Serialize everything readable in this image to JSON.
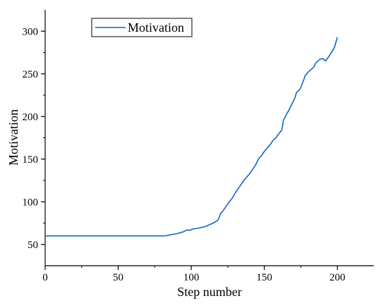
{
  "chart_data": {
    "type": "line",
    "xlabel": "Step number",
    "ylabel": "Motivation",
    "xlim": [
      0,
      225
    ],
    "ylim": [
      25,
      325
    ],
    "xticks": [
      0,
      50,
      100,
      150,
      200
    ],
    "yticks": [
      50,
      100,
      150,
      200,
      250,
      300
    ],
    "grid": false,
    "legend_position": "top-left",
    "line_color": "#1565c0",
    "series": [
      {
        "name": "Motivation",
        "points": [
          [
            0,
            60
          ],
          [
            10,
            60
          ],
          [
            20,
            60
          ],
          [
            30,
            60
          ],
          [
            40,
            60
          ],
          [
            50,
            60
          ],
          [
            60,
            60
          ],
          [
            70,
            60
          ],
          [
            80,
            60
          ],
          [
            82,
            60
          ],
          [
            85,
            61
          ],
          [
            88,
            62
          ],
          [
            90,
            62.5
          ],
          [
            93,
            64
          ],
          [
            95,
            65
          ],
          [
            97,
            67
          ],
          [
            99,
            66.5
          ],
          [
            101,
            68
          ],
          [
            103,
            68.5
          ],
          [
            105,
            69
          ],
          [
            107,
            70
          ],
          [
            109,
            70.5
          ],
          [
            111,
            72
          ],
          [
            113,
            73.5
          ],
          [
            115,
            75
          ],
          [
            117,
            77
          ],
          [
            118,
            78
          ],
          [
            119,
            81
          ],
          [
            120,
            86
          ],
          [
            122,
            90
          ],
          [
            124,
            95
          ],
          [
            126,
            100
          ],
          [
            128,
            104
          ],
          [
            130,
            110
          ],
          [
            132,
            115
          ],
          [
            134,
            120
          ],
          [
            136,
            125
          ],
          [
            138,
            129
          ],
          [
            140,
            133
          ],
          [
            142,
            138
          ],
          [
            144,
            143
          ],
          [
            146,
            150
          ],
          [
            148,
            154
          ],
          [
            150,
            159
          ],
          [
            152,
            163
          ],
          [
            154,
            167
          ],
          [
            156,
            172
          ],
          [
            158,
            175
          ],
          [
            160,
            180
          ],
          [
            162,
            184
          ],
          [
            163,
            195
          ],
          [
            165,
            202
          ],
          [
            167,
            208
          ],
          [
            169,
            215
          ],
          [
            171,
            222
          ],
          [
            172,
            228
          ],
          [
            174,
            231
          ],
          [
            175,
            234
          ],
          [
            177,
            243
          ],
          [
            178,
            248
          ],
          [
            180,
            252
          ],
          [
            182,
            255
          ],
          [
            184,
            258
          ],
          [
            185,
            262
          ],
          [
            186,
            264
          ],
          [
            188,
            267
          ],
          [
            190,
            268
          ],
          [
            192,
            265
          ],
          [
            194,
            270
          ],
          [
            196,
            275
          ],
          [
            198,
            281
          ],
          [
            200,
            293
          ]
        ]
      }
    ]
  }
}
